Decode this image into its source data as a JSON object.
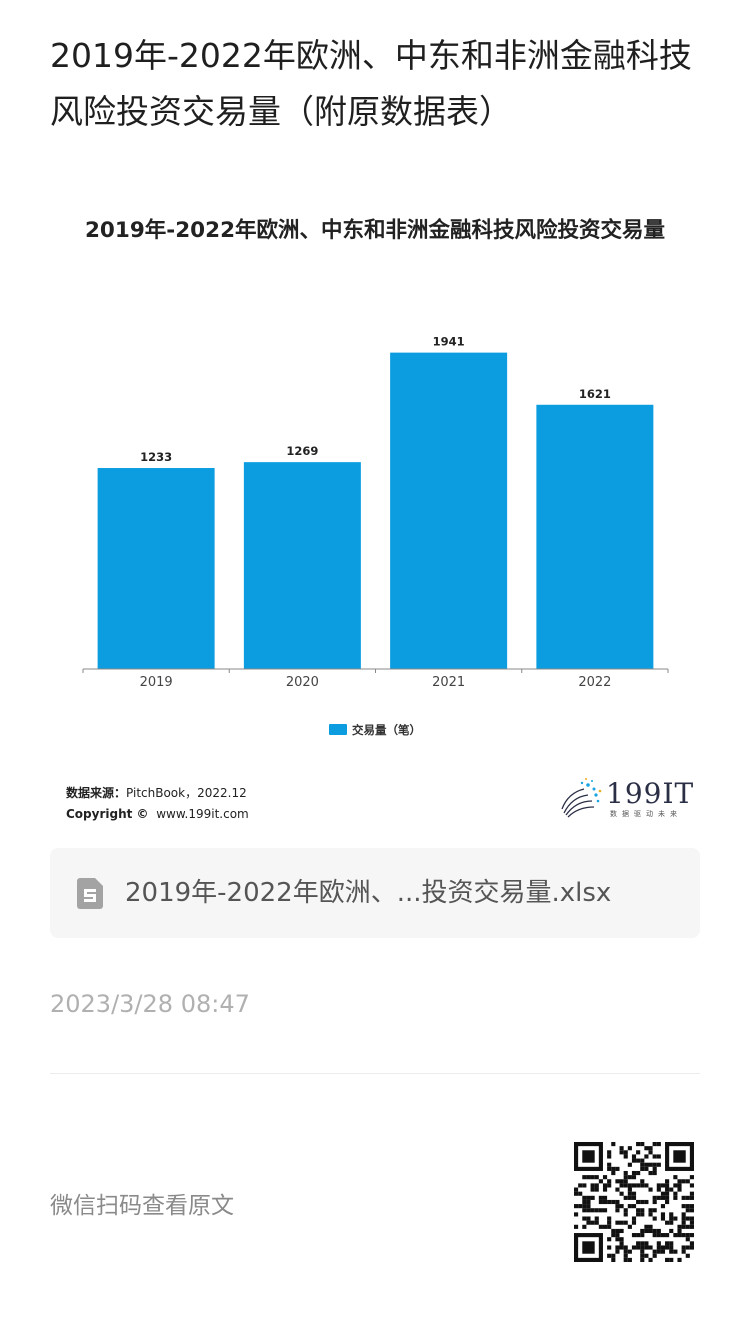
{
  "article": {
    "title": "2019年-2022年欧洲、中东和非洲金融科技风险投资交易量（附原数据表）"
  },
  "chart_data": {
    "type": "bar",
    "title": "2019年-2022年欧洲、中东和非洲金融科技风险投资交易量",
    "categories": [
      "2019",
      "2020",
      "2021",
      "2022"
    ],
    "series": [
      {
        "name": "交易量（笔）",
        "values": [
          1233,
          1269,
          1941,
          1621
        ],
        "color": "#0c9de0"
      }
    ],
    "ylim": [
      0,
      2000
    ],
    "grid": false,
    "legend": "bottom",
    "data_labels": true
  },
  "figure": {
    "source_label": "数据来源：",
    "source_value": "PitchBook，2022.12",
    "copyright_label": "Copyright ©",
    "copyright_value": "www.199it.com",
    "logo_text": "199IT",
    "logo_tagline": "数据驱动未来"
  },
  "attachment": {
    "file_name": "2019年-2022年欧洲、...投资交易量.xlsx",
    "icon": "spreadsheet-file-icon"
  },
  "meta": {
    "timestamp": "2023/3/28 08:47"
  },
  "footer": {
    "qr_hint": "微信扫码查看原文",
    "qr_icon": "qr-code-icon"
  }
}
